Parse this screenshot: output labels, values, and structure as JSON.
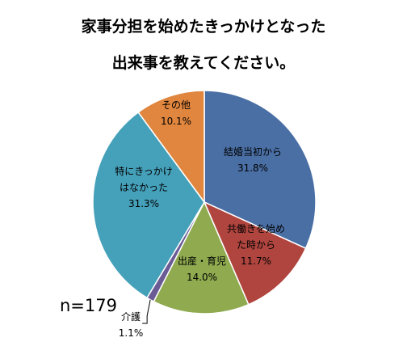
{
  "title": {
    "line1": "家事分担を始めたきっかけとなった",
    "line2": "出来事を教えてください。"
  },
  "n_label": "n=179",
  "chart_data": {
    "type": "pie",
    "title": "家事分担を始めたきっかけとなった出来事を教えてください。",
    "n": "n=179",
    "slices": [
      {
        "label_lines": [
          "結婚当初から"
        ],
        "pct_text": "31.8%",
        "value": 31.8,
        "color": "#4a6fa5"
      },
      {
        "label_lines": [
          "共働きを始め",
          "た時から"
        ],
        "pct_text": "11.7%",
        "value": 11.7,
        "color": "#b0453f"
      },
      {
        "label_lines": [
          "出産・育児"
        ],
        "pct_text": "14.0%",
        "value": 14.0,
        "color": "#8faa4f"
      },
      {
        "label_lines": [
          "介護"
        ],
        "pct_text": "1.1%",
        "value": 1.1,
        "color": "#6b5b95"
      },
      {
        "label_lines": [
          "特にきっかけ",
          "はなかった"
        ],
        "pct_text": "31.3%",
        "value": 31.3,
        "color": "#45a0ba"
      },
      {
        "label_lines": [
          "その他"
        ],
        "pct_text": "10.1%",
        "value": 10.1,
        "color": "#e0863e"
      }
    ]
  }
}
